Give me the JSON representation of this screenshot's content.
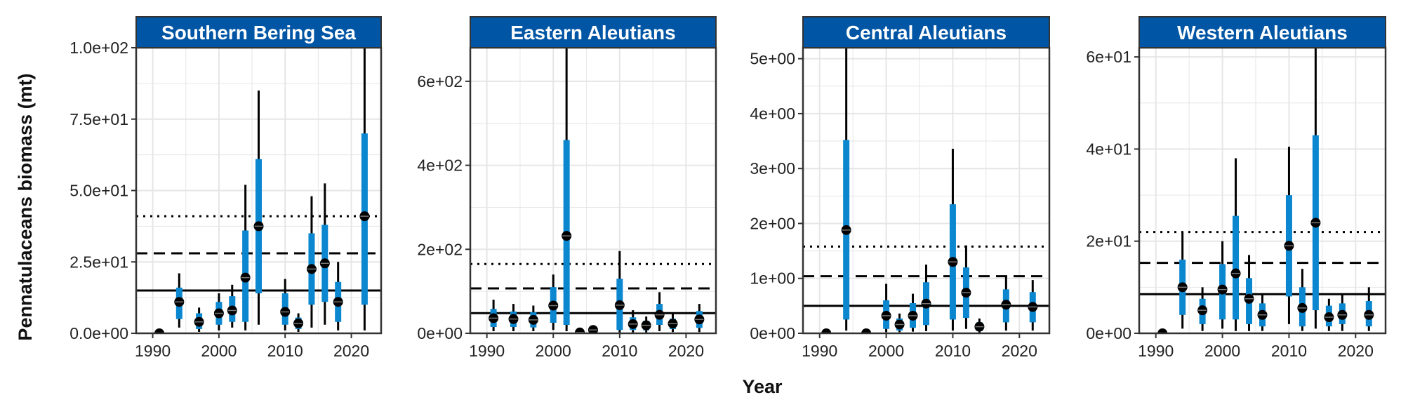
{
  "figure": {
    "ylabel": "Pennatulaceans biomass (mt)",
    "xlabel": "Year"
  },
  "colors": {
    "strip": "#0055A4",
    "ci_inner": "#0B87D0",
    "ci_outer": "#000000",
    "point": "#000000",
    "grid": "#E6E6E6"
  },
  "chart_data": [
    {
      "type": "scatter",
      "title": "Southern Bering Sea",
      "xlim": [
        1987.5,
        2024.5
      ],
      "ylim": [
        0,
        100
      ],
      "xticks": [
        1990,
        2000,
        2010,
        2020
      ],
      "yticks": [
        0,
        25,
        50,
        75,
        100
      ],
      "ytick_labels": [
        "0.0e+00",
        "2.5e+01",
        "5.0e+01",
        "7.5e+01",
        "1.0e+02"
      ],
      "reference_lines": {
        "solid": 15,
        "dashed": 28,
        "dotted": 41
      },
      "series": [
        {
          "year": 1991,
          "value": 0,
          "lo80": 0,
          "hi80": 0,
          "lo95": 0,
          "hi95": 0
        },
        {
          "year": 1994,
          "value": 11,
          "lo80": 5,
          "hi80": 16,
          "lo95": 2,
          "hi95": 21
        },
        {
          "year": 1997,
          "value": 4,
          "lo80": 1.5,
          "hi80": 7,
          "lo95": 0.5,
          "hi95": 9
        },
        {
          "year": 2000,
          "value": 7,
          "lo80": 3,
          "hi80": 11,
          "lo95": 1,
          "hi95": 14
        },
        {
          "year": 2002,
          "value": 8,
          "lo80": 4,
          "hi80": 13,
          "lo95": 2,
          "hi95": 17
        },
        {
          "year": 2004,
          "value": 19.5,
          "lo80": 4,
          "hi80": 36,
          "lo95": 1,
          "hi95": 52
        },
        {
          "year": 2006,
          "value": 37.5,
          "lo80": 14,
          "hi80": 61,
          "lo95": 3,
          "hi95": 85
        },
        {
          "year": 2010,
          "value": 7.5,
          "lo80": 3,
          "hi80": 14,
          "lo95": 1,
          "hi95": 19
        },
        {
          "year": 2012,
          "value": 3.5,
          "lo80": 1.5,
          "hi80": 5.5,
          "lo95": 0.5,
          "hi95": 7
        },
        {
          "year": 2014,
          "value": 22.5,
          "lo80": 10,
          "hi80": 35,
          "lo95": 2,
          "hi95": 48
        },
        {
          "year": 2016,
          "value": 24.5,
          "lo80": 11,
          "hi80": 38,
          "lo95": 3,
          "hi95": 52.5
        },
        {
          "year": 2018,
          "value": 11,
          "lo80": 4,
          "hi80": 18,
          "lo95": 1,
          "hi95": 25
        },
        {
          "year": 2022,
          "value": 41,
          "lo80": 10,
          "hi80": 70,
          "lo95": 1,
          "hi95": 100
        }
      ]
    },
    {
      "type": "scatter",
      "title": "Eastern Aleutians",
      "xlim": [
        1987.5,
        2024.5
      ],
      "ylim": [
        0,
        680
      ],
      "xticks": [
        1990,
        2000,
        2010,
        2020
      ],
      "yticks": [
        0,
        200,
        400,
        600
      ],
      "ytick_labels": [
        "0e+00",
        "2e+02",
        "4e+02",
        "6e+02"
      ],
      "reference_lines": {
        "solid": 48,
        "dashed": 107,
        "dotted": 165
      },
      "series": [
        {
          "year": 1991,
          "value": 36,
          "lo80": 15,
          "hi80": 58,
          "lo95": 5,
          "hi95": 80
        },
        {
          "year": 1994,
          "value": 34,
          "lo80": 15,
          "hi80": 52,
          "lo95": 5,
          "hi95": 70
        },
        {
          "year": 1997,
          "value": 32,
          "lo80": 14,
          "hi80": 50,
          "lo95": 5,
          "hi95": 66
        },
        {
          "year": 2000,
          "value": 66,
          "lo80": 25,
          "hi80": 110,
          "lo95": 8,
          "hi95": 140
        },
        {
          "year": 2002,
          "value": 232,
          "lo80": 20,
          "hi80": 460,
          "lo95": 5,
          "hi95": 680
        },
        {
          "year": 2004,
          "value": 2,
          "lo80": 0,
          "hi80": 4,
          "lo95": 0,
          "hi95": 6
        },
        {
          "year": 2006,
          "value": 8,
          "lo80": 3,
          "hi80": 13,
          "lo95": 1,
          "hi95": 17
        },
        {
          "year": 2010,
          "value": 67,
          "lo80": 8,
          "hi80": 130,
          "lo95": 2,
          "hi95": 196
        },
        {
          "year": 2012,
          "value": 22,
          "lo80": 8,
          "hi80": 38,
          "lo95": 2,
          "hi95": 55
        },
        {
          "year": 2014,
          "value": 19,
          "lo80": 7,
          "hi80": 30,
          "lo95": 2,
          "hi95": 40
        },
        {
          "year": 2016,
          "value": 44,
          "lo80": 20,
          "hi80": 70,
          "lo95": 5,
          "hi95": 98
        },
        {
          "year": 2018,
          "value": 23,
          "lo80": 10,
          "hi80": 35,
          "lo95": 3,
          "hi95": 46
        },
        {
          "year": 2022,
          "value": 33,
          "lo80": 13,
          "hi80": 53,
          "lo95": 3,
          "hi95": 70
        }
      ]
    },
    {
      "type": "scatter",
      "title": "Central Aleutians",
      "xlim": [
        1987.5,
        2024.5
      ],
      "ylim": [
        0,
        5.2
      ],
      "xticks": [
        1990,
        2000,
        2010,
        2020
      ],
      "yticks": [
        0,
        1,
        2,
        3,
        4,
        5
      ],
      "ytick_labels": [
        "0e+00",
        "1e+00",
        "2e+00",
        "3e+00",
        "4e+00",
        "5e+00"
      ],
      "reference_lines": {
        "solid": 0.5,
        "dashed": 1.04,
        "dotted": 1.58
      },
      "series": [
        {
          "year": 1991,
          "value": 0,
          "lo80": 0,
          "hi80": 0,
          "lo95": 0,
          "hi95": 0
        },
        {
          "year": 1994,
          "value": 1.88,
          "lo80": 0.25,
          "hi80": 3.52,
          "lo95": 0.05,
          "hi95": 5.2
        },
        {
          "year": 1997,
          "value": 0,
          "lo80": 0,
          "hi80": 0,
          "lo95": 0,
          "hi95": 0
        },
        {
          "year": 2000,
          "value": 0.32,
          "lo80": 0.08,
          "hi80": 0.6,
          "lo95": 0.02,
          "hi95": 0.9
        },
        {
          "year": 2002,
          "value": 0.16,
          "lo80": 0.05,
          "hi80": 0.27,
          "lo95": 0.02,
          "hi95": 0.36
        },
        {
          "year": 2004,
          "value": 0.32,
          "lo80": 0.1,
          "hi80": 0.55,
          "lo95": 0.03,
          "hi95": 0.72
        },
        {
          "year": 2006,
          "value": 0.54,
          "lo80": 0.15,
          "hi80": 0.93,
          "lo95": 0.04,
          "hi95": 1.25
        },
        {
          "year": 2010,
          "value": 1.3,
          "lo80": 0.25,
          "hi80": 2.35,
          "lo95": 0.05,
          "hi95": 3.36
        },
        {
          "year": 2012,
          "value": 0.74,
          "lo80": 0.28,
          "hi80": 1.2,
          "lo95": 0.08,
          "hi95": 1.6
        },
        {
          "year": 2014,
          "value": 0.12,
          "lo80": 0.04,
          "hi80": 0.2,
          "lo95": 0.01,
          "hi95": 0.27
        },
        {
          "year": 2018,
          "value": 0.52,
          "lo80": 0.2,
          "hi80": 0.8,
          "lo95": 0.05,
          "hi95": 1.05
        },
        {
          "year": 2022,
          "value": 0.48,
          "lo80": 0.2,
          "hi80": 0.75,
          "lo95": 0.05,
          "hi95": 0.97
        }
      ]
    },
    {
      "type": "scatter",
      "title": "Western Aleutians",
      "xlim": [
        1987.5,
        2024.5
      ],
      "ylim": [
        0,
        62
      ],
      "xticks": [
        1990,
        2000,
        2010,
        2020
      ],
      "yticks": [
        0,
        20,
        40,
        60
      ],
      "ytick_labels": [
        "0e+00",
        "2e+01",
        "4e+01",
        "6e+01"
      ],
      "reference_lines": {
        "solid": 8.5,
        "dashed": 15.3,
        "dotted": 22
      },
      "series": [
        {
          "year": 1991,
          "value": 0,
          "lo80": 0,
          "hi80": 0,
          "lo95": 0,
          "hi95": 0
        },
        {
          "year": 1994,
          "value": 10,
          "lo80": 4,
          "hi80": 16,
          "lo95": 1,
          "hi95": 22
        },
        {
          "year": 1997,
          "value": 5,
          "lo80": 2,
          "hi80": 7.5,
          "lo95": 0.5,
          "hi95": 10
        },
        {
          "year": 2000,
          "value": 9.5,
          "lo80": 3,
          "hi80": 15,
          "lo95": 1,
          "hi95": 20
        },
        {
          "year": 2002,
          "value": 13,
          "lo80": 3,
          "hi80": 25.5,
          "lo95": 0.5,
          "hi95": 38
        },
        {
          "year": 2004,
          "value": 7.5,
          "lo80": 2,
          "hi80": 12,
          "lo95": 0.5,
          "hi95": 17
        },
        {
          "year": 2006,
          "value": 4,
          "lo80": 1.5,
          "hi80": 6.5,
          "lo95": 0.5,
          "hi95": 8.5
        },
        {
          "year": 2010,
          "value": 19,
          "lo80": 8,
          "hi80": 30,
          "lo95": 2,
          "hi95": 40.5
        },
        {
          "year": 2012,
          "value": 5.5,
          "lo80": 1.5,
          "hi80": 10,
          "lo95": 0.5,
          "hi95": 14
        },
        {
          "year": 2014,
          "value": 24,
          "lo80": 5,
          "hi80": 43,
          "lo95": 1,
          "hi95": 62
        },
        {
          "year": 2016,
          "value": 3.5,
          "lo80": 1.5,
          "hi80": 6,
          "lo95": 0.5,
          "hi95": 7.5
        },
        {
          "year": 2018,
          "value": 4,
          "lo80": 2,
          "hi80": 6.5,
          "lo95": 0.5,
          "hi95": 8.5
        },
        {
          "year": 2022,
          "value": 4,
          "lo80": 1.5,
          "hi80": 7,
          "lo95": 0.5,
          "hi95": 10
        }
      ]
    }
  ]
}
